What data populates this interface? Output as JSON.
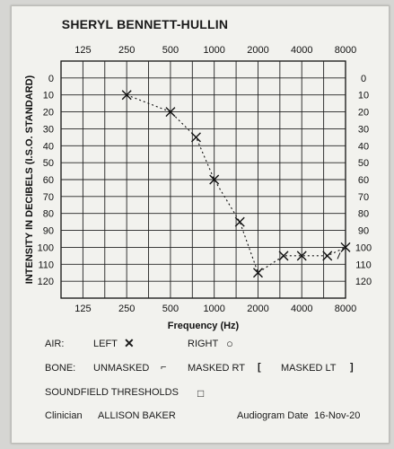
{
  "title": "SHERYL BENNETT-HULLIN",
  "chart_data": {
    "type": "line",
    "x_scale": "log2",
    "x_ticks": [
      "125",
      "250",
      "500",
      "1000",
      "2000",
      "4000",
      "8000"
    ],
    "x_tick_values": [
      125,
      250,
      500,
      1000,
      2000,
      4000,
      8000
    ],
    "xlabel": "Frequency (Hz)",
    "ylabel": "INTENSITY IN DECIBELS (I.S.O. STANDARD)",
    "y_ticks_left": [
      "0",
      "10",
      "20",
      "30",
      "40",
      "50",
      "60",
      "70",
      "80",
      "90",
      "100",
      "110",
      "120"
    ],
    "y_ticks_right": [
      "0",
      "10",
      "20",
      "30",
      "40",
      "50",
      "60",
      "70",
      "80",
      "90",
      "100",
      "110",
      "120"
    ],
    "ylim": [
      -10,
      130
    ],
    "y_inverted": true,
    "grid": true,
    "series": [
      {
        "marker": "X",
        "line": "dotted",
        "x": [
          250,
          500,
          750,
          1000,
          1500,
          2000,
          3000,
          4000,
          6000,
          8000
        ],
        "y": [
          10,
          20,
          35,
          60,
          85,
          115,
          105,
          105,
          105,
          100
        ]
      }
    ]
  },
  "legend": {
    "air_label": "AIR:",
    "left_label": "LEFT",
    "left_symbol": "✕",
    "right_label": "RIGHT",
    "right_symbol": "○",
    "bone_label": "BONE:",
    "unmasked_label": "UNMASKED",
    "unmasked_symbol": "⌐",
    "masked_rt_label": "MASKED RT",
    "masked_rt_symbol": "[",
    "masked_lt_label": "MASKED LT",
    "masked_lt_symbol": "]",
    "soundfield_label": "SOUNDFIELD THRESHOLDS",
    "soundfield_symbol": "□"
  },
  "footer": {
    "clinician_label": "Clinician",
    "clinician_name": "ALLISON BAKER",
    "date_label": "Audiogram Date",
    "date_value": "16-Nov-20"
  }
}
